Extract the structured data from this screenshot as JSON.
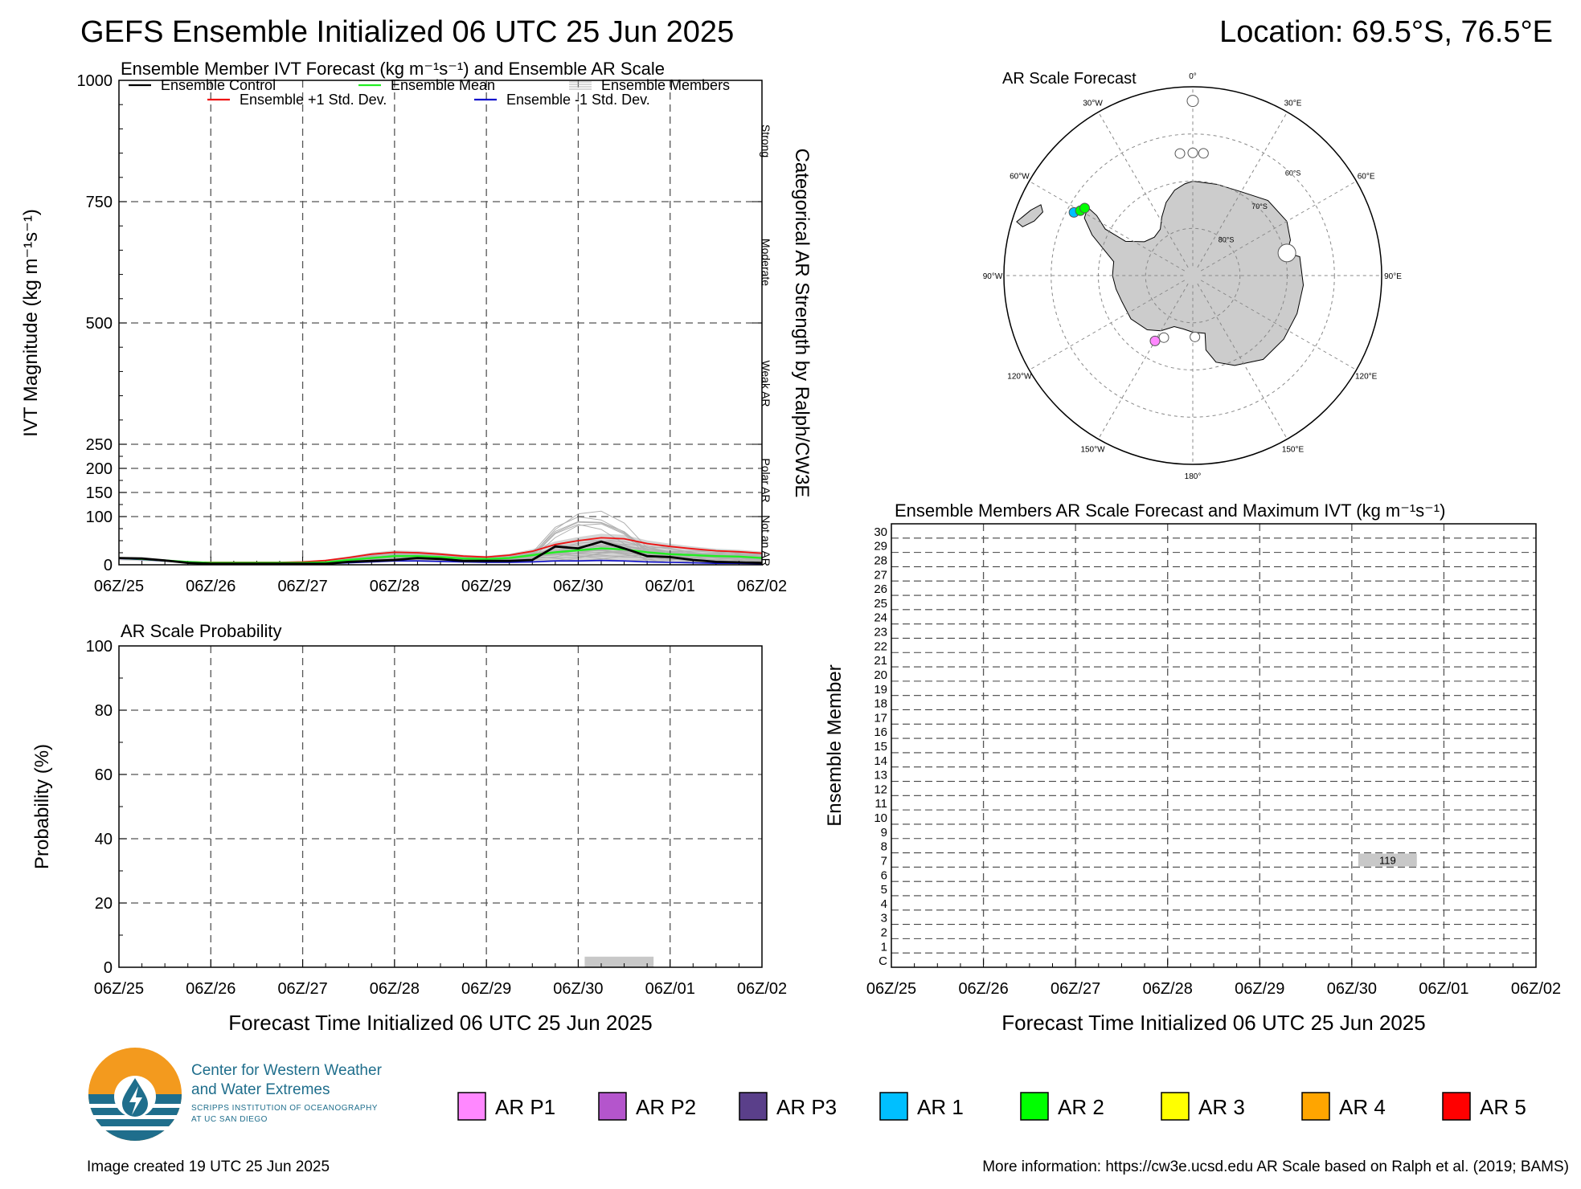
{
  "header": {
    "title": "GEFS Ensemble Initialized 06 UTC 25 Jun 2025",
    "location": "Location: 69.5°S, 76.5°E"
  },
  "colors": {
    "control": "#000000",
    "mean": "#22ee22",
    "plus_sd": "#ee1111",
    "minus_sd": "#1111cc",
    "members": "#b0b0b0",
    "spread": "#d4d4d4",
    "land": "#cccccc",
    "not_ar_bar": "#c8c8c8"
  },
  "chart_data": [
    {
      "id": "ivt",
      "type": "line",
      "title": "Ensemble Member IVT Forecast (kg m⁻¹s⁻¹) and Ensemble AR Scale",
      "ylabel": "IVT Magnitude (kg m⁻¹s⁻¹)",
      "right_label": "Categorical AR Strength by Ralph/CW3E",
      "xticks": [
        "06Z/25",
        "06Z/26",
        "06Z/27",
        "06Z/28",
        "06Z/29",
        "06Z/30",
        "06Z/01",
        "06Z/02"
      ],
      "xlim": [
        0,
        168
      ],
      "yticks": [
        0,
        100,
        150,
        200,
        250,
        500,
        750,
        1000
      ],
      "ylim": [
        0,
        1000
      ],
      "y_scale": "piecewise: 0-250 and 250-1000 drawn with different spacing",
      "categories_right": [
        "Not an AR",
        "Polar AR",
        "Weak AR",
        "Moderate",
        "Strong"
      ],
      "legend": {
        "control": "Ensemble Control",
        "mean": "Ensemble Mean",
        "members": "Ensemble Members",
        "plus_sd": "Ensemble +1 Std. Dev.",
        "minus_sd": "Ensemble -1 Std. Dev."
      },
      "x_hours": [
        0,
        6,
        12,
        18,
        24,
        30,
        36,
        42,
        48,
        54,
        60,
        66,
        72,
        78,
        84,
        90,
        96,
        102,
        108,
        114,
        120,
        126,
        132,
        138,
        144,
        150,
        156,
        162,
        168
      ],
      "series": [
        {
          "key": "control",
          "values": [
            14,
            13,
            9,
            4,
            2,
            2,
            2,
            2,
            2,
            2,
            6,
            8,
            10,
            14,
            12,
            8,
            8,
            8,
            10,
            38,
            34,
            48,
            34,
            18,
            16,
            10,
            6,
            5,
            4
          ]
        },
        {
          "key": "mean",
          "values": [
            14,
            12,
            9,
            6,
            4,
            4,
            4,
            4,
            4,
            5,
            10,
            14,
            18,
            18,
            16,
            13,
            12,
            14,
            20,
            26,
            30,
            34,
            32,
            26,
            22,
            20,
            18,
            17,
            14
          ]
        },
        {
          "key": "plus_sd",
          "values": [
            14,
            12,
            9,
            6,
            5,
            5,
            5,
            5,
            6,
            9,
            15,
            22,
            26,
            25,
            22,
            18,
            16,
            20,
            28,
            42,
            50,
            56,
            54,
            44,
            38,
            33,
            29,
            27,
            24
          ]
        },
        {
          "key": "minus_sd",
          "values": [
            13,
            11,
            8,
            5,
            3,
            2,
            2,
            2,
            2,
            2,
            4,
            6,
            8,
            8,
            7,
            6,
            5,
            5,
            6,
            8,
            8,
            9,
            8,
            6,
            5,
            4,
            3,
            3,
            2
          ]
        }
      ],
      "spread_peak_max": 118
    },
    {
      "id": "prob",
      "type": "bar",
      "title": "AR Scale Probability",
      "ylabel": "Probability (%)",
      "xlabel": "Forecast Time Initialized 06 UTC 25 Jun 2025",
      "xticks": [
        "06Z/25",
        "06Z/26",
        "06Z/27",
        "06Z/28",
        "06Z/29",
        "06Z/30",
        "06Z/01",
        "06Z/02"
      ],
      "yticks": [
        0,
        20,
        40,
        60,
        80,
        100
      ],
      "ylim": [
        0,
        100
      ],
      "xlim": [
        0,
        168
      ],
      "bars": [
        {
          "start_hour": 120,
          "end_hour": 138,
          "value": 3.3
        }
      ]
    },
    {
      "id": "members",
      "type": "table",
      "title": "Ensemble Members AR Scale Forecast and Maximum IVT (kg m⁻¹s⁻¹)",
      "ylabel": "Ensemble Member",
      "xlabel": "Forecast Time Initialized 06 UTC 25 Jun 2025",
      "xticks": [
        "06Z/25",
        "06Z/26",
        "06Z/27",
        "06Z/28",
        "06Z/29",
        "06Z/30",
        "06Z/01",
        "06Z/02"
      ],
      "xlim": [
        0,
        168
      ],
      "row_labels": [
        "C",
        "1",
        "2",
        "3",
        "4",
        "5",
        "6",
        "7",
        "8",
        "9",
        "10",
        "11",
        "12",
        "13",
        "14",
        "15",
        "16",
        "17",
        "18",
        "19",
        "20",
        "21",
        "22",
        "23",
        "24",
        "25",
        "26",
        "27",
        "28",
        "29",
        "30"
      ],
      "events": [
        {
          "member": "7",
          "start_hour": 120,
          "end_hour": 138,
          "max_ivt": "119"
        }
      ]
    },
    {
      "id": "map",
      "type": "scatter",
      "title": "AR Scale Forecast",
      "projection": "south-polar stereographic",
      "lon_labels": [
        "0°",
        "30°E",
        "60°E",
        "90°E",
        "120°E",
        "150°E",
        "180°",
        "150°W",
        "120°W",
        "90°W",
        "60°W",
        "30°W"
      ],
      "lat_labels": [
        "60°S",
        "70°S",
        "80°S"
      ],
      "markers": [
        {
          "lon": 0,
          "lat": -53,
          "category": "Not an AR",
          "size": "medium"
        },
        {
          "lon": 5,
          "lat": -64,
          "category": "Not an AR",
          "size": "small"
        },
        {
          "lon": 0,
          "lat": -64,
          "category": "Not an AR",
          "size": "small"
        },
        {
          "lon": -6,
          "lat": -64,
          "category": "Not an AR",
          "size": "small"
        },
        {
          "lon": 76.5,
          "lat": -69.5,
          "category": "Not an AR",
          "size": "large"
        },
        {
          "lon": -62,
          "lat": -61.5,
          "category": "AR 1",
          "size": "small"
        },
        {
          "lon": -60,
          "lat": -62.5,
          "category": "AR 2",
          "size": "small"
        },
        {
          "lon": -58,
          "lat": -63,
          "category": "AR 2",
          "size": "small"
        },
        {
          "lon": 178,
          "lat": -77,
          "category": "Not an AR",
          "size": "small"
        },
        {
          "lon": -155,
          "lat": -75.5,
          "category": "Not an AR",
          "size": "small"
        },
        {
          "lon": -150,
          "lat": -74,
          "category": "AR P1",
          "size": "small"
        }
      ]
    }
  ],
  "ar_legend": [
    {
      "label": "AR P1",
      "color": "#ff88ff"
    },
    {
      "label": "AR P2",
      "color": "#b455cc"
    },
    {
      "label": "AR P3",
      "color": "#5a3f8a"
    },
    {
      "label": "AR 1",
      "color": "#00bfff"
    },
    {
      "label": "AR 2",
      "color": "#00ff00"
    },
    {
      "label": "AR 3",
      "color": "#ffff00"
    },
    {
      "label": "AR 4",
      "color": "#ffa500"
    },
    {
      "label": "AR 5",
      "color": "#ff0000"
    }
  ],
  "logo": {
    "line1": "Center for Western Weather",
    "line2": "and Water Extremes",
    "line3": "SCRIPPS INSTITUTION OF OCEANOGRAPHY",
    "line4": "AT UC SAN DIEGO"
  },
  "footer": {
    "created": "Image created 19 UTC 25 Jun 2025",
    "info": "More information: https://cw3e.ucsd.edu AR Scale based on Ralph et al. (2019; BAMS)"
  }
}
